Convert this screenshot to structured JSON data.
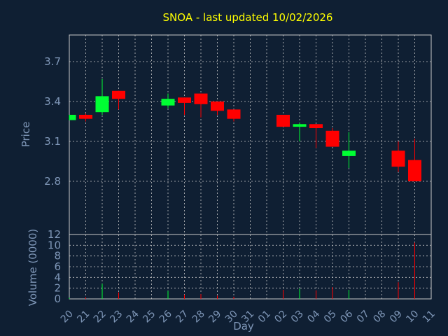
{
  "chart_data": {
    "type": "candlestick",
    "title": "SNOA - last updated 10/02/2026",
    "xlabel": "Day",
    "ylabel": "Price",
    "volume_label": "Volume (0000)",
    "price_ylim": [
      2.4,
      3.9
    ],
    "price_ticks": [
      "3.7",
      "3.4",
      "3.1",
      "2.8"
    ],
    "price_tick_values": [
      3.7,
      3.4,
      3.1,
      2.8
    ],
    "volume_ylim": [
      0,
      12
    ],
    "volume_ticks": [
      "12",
      "10",
      "8",
      "6",
      "4",
      "2",
      "0"
    ],
    "volume_tick_values": [
      12,
      10,
      8,
      6,
      4,
      2,
      0
    ],
    "days": [
      "20",
      "21",
      "22",
      "23",
      "24",
      "25",
      "26",
      "27",
      "28",
      "29",
      "30",
      "31",
      "01",
      "02",
      "03",
      "04",
      "05",
      "06",
      "07",
      "08",
      "09",
      "10",
      "11"
    ],
    "grid": true,
    "colors": {
      "up": "#00ff33",
      "down": "#ff0000",
      "grid": "#c9c9c9",
      "background": "#0f1f33",
      "title": "#ffff00",
      "axis": "#7f97b8"
    },
    "candles": [
      {
        "day": "20",
        "open": 3.26,
        "high": 3.3,
        "low": 3.26,
        "close": 3.3,
        "volume": 0.2
      },
      {
        "day": "21",
        "open": 3.3,
        "high": 3.31,
        "low": 3.25,
        "close": 3.27,
        "volume": 0.3
      },
      {
        "day": "22",
        "open": 3.32,
        "high": 3.57,
        "low": 3.3,
        "close": 3.44,
        "volume": 2.8
      },
      {
        "day": "23",
        "open": 3.48,
        "high": 3.48,
        "low": 3.34,
        "close": 3.42,
        "volume": 1.2
      },
      {
        "day": "26",
        "open": 3.37,
        "high": 3.46,
        "low": 3.35,
        "close": 3.42,
        "volume": 1.5
      },
      {
        "day": "27",
        "open": 3.43,
        "high": 3.43,
        "low": 3.3,
        "close": 3.39,
        "volume": 0.8
      },
      {
        "day": "28",
        "open": 3.46,
        "high": 3.46,
        "low": 3.28,
        "close": 3.38,
        "volume": 0.9
      },
      {
        "day": "29",
        "open": 3.4,
        "high": 3.4,
        "low": 3.3,
        "close": 3.33,
        "volume": 0.6
      },
      {
        "day": "30",
        "open": 3.34,
        "high": 3.34,
        "low": 3.25,
        "close": 3.27,
        "volume": 0.4
      },
      {
        "day": "02",
        "open": 3.3,
        "high": 3.3,
        "low": 3.21,
        "close": 3.21,
        "volume": 1.7
      },
      {
        "day": "03",
        "open": 3.21,
        "high": 3.24,
        "low": 3.1,
        "close": 3.23,
        "volume": 1.9
      },
      {
        "day": "04",
        "open": 3.23,
        "high": 3.23,
        "low": 3.05,
        "close": 3.2,
        "volume": 1.6
      },
      {
        "day": "05",
        "open": 3.18,
        "high": 3.2,
        "low": 3.06,
        "close": 3.06,
        "volume": 2.2
      },
      {
        "day": "06",
        "open": 2.99,
        "high": 3.17,
        "low": 2.9,
        "close": 3.03,
        "volume": 1.7
      },
      {
        "day": "09",
        "open": 3.03,
        "high": 3.1,
        "low": 2.87,
        "close": 2.91,
        "volume": 3.1
      },
      {
        "day": "10",
        "open": 2.96,
        "high": 3.12,
        "low": 2.8,
        "close": 2.8,
        "volume": 10.5
      }
    ]
  }
}
